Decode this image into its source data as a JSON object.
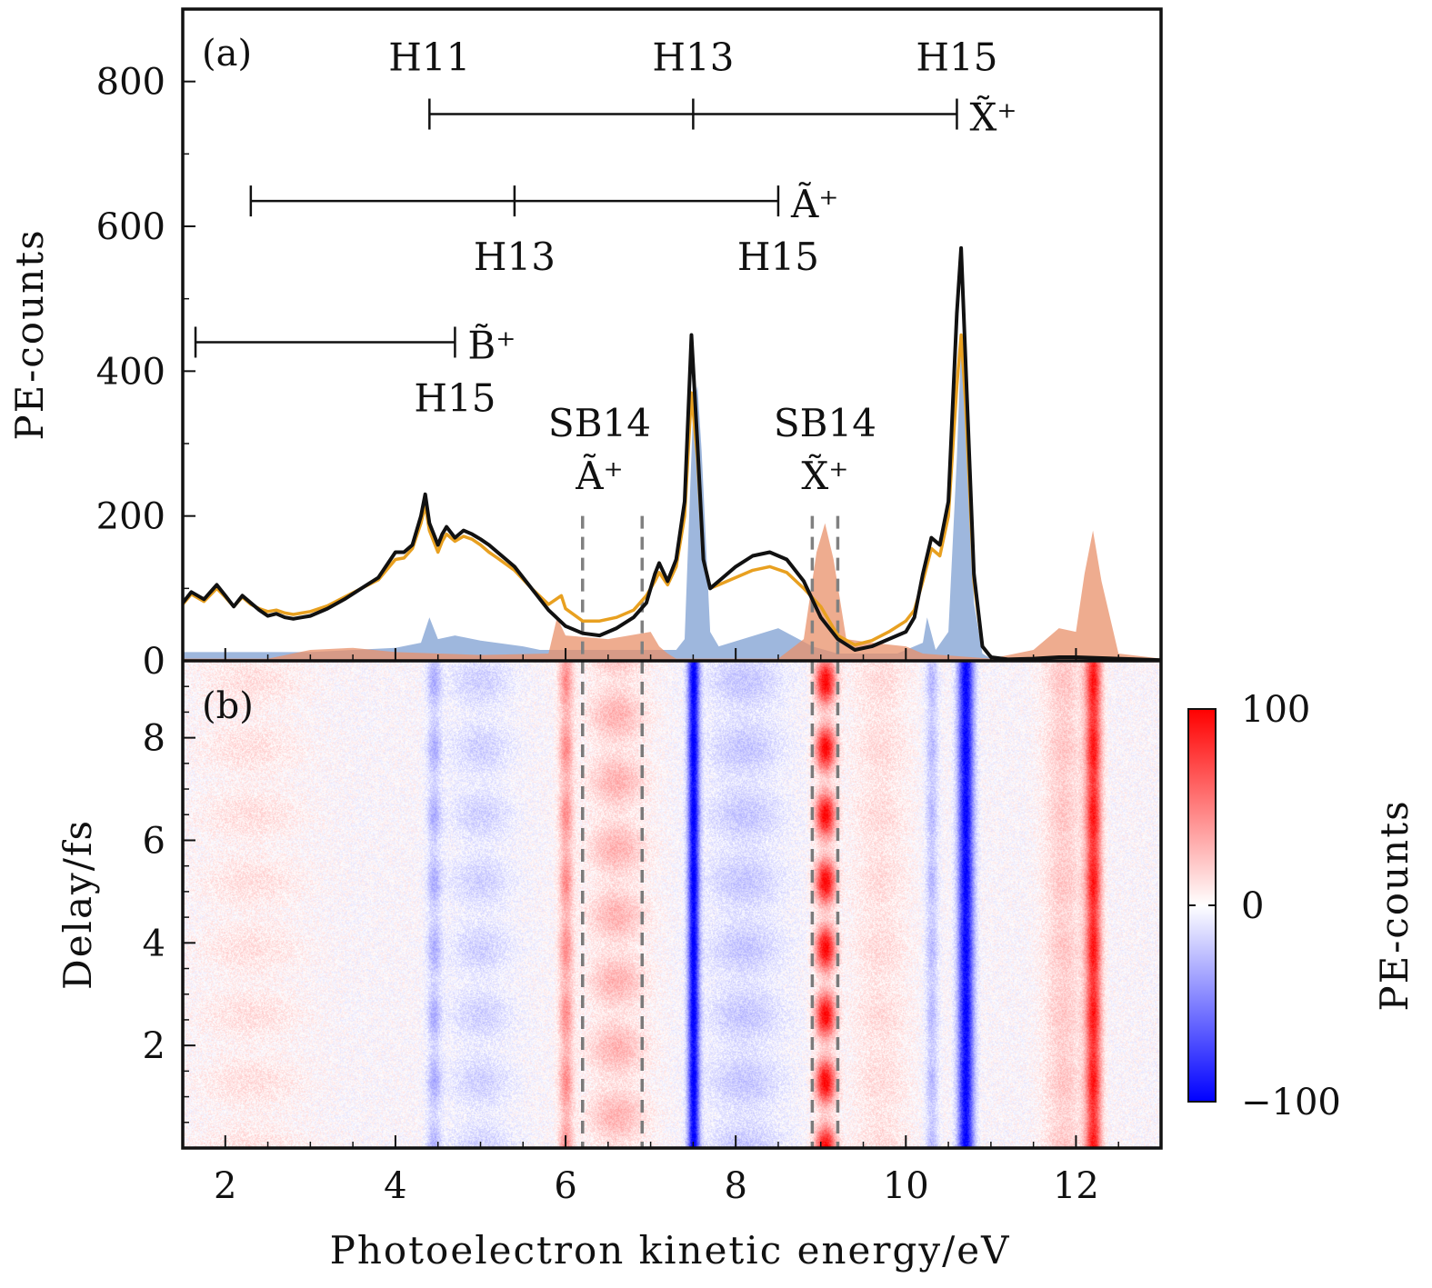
{
  "chart_data": [
    {
      "panel_label": "(a)",
      "type": "line",
      "ylabel": "PE-counts",
      "xlim": [
        1.5,
        13
      ],
      "ylim": [
        0,
        900
      ],
      "xticks": [
        2,
        4,
        6,
        8,
        10,
        12
      ],
      "yticks": [
        0,
        200,
        400,
        600,
        800
      ],
      "grid": false,
      "series": [
        {
          "color": "#111111",
          "x": [
            1.5,
            1.6,
            1.75,
            1.9,
            2.0,
            2.1,
            2.2,
            2.3,
            2.4,
            2.5,
            2.6,
            2.7,
            2.8,
            2.9,
            3.0,
            3.2,
            3.4,
            3.6,
            3.8,
            4.0,
            4.1,
            4.2,
            4.3,
            4.35,
            4.4,
            4.5,
            4.55,
            4.6,
            4.7,
            4.8,
            4.9,
            5.0,
            5.1,
            5.2,
            5.4,
            5.6,
            5.8,
            6.0,
            6.2,
            6.4,
            6.6,
            6.8,
            6.95,
            7.05,
            7.1,
            7.2,
            7.3,
            7.4,
            7.48,
            7.55,
            7.62,
            7.7,
            7.8,
            8.0,
            8.2,
            8.4,
            8.6,
            8.8,
            9.0,
            9.2,
            9.4,
            9.6,
            9.8,
            10.0,
            10.1,
            10.2,
            10.3,
            10.4,
            10.5,
            10.6,
            10.65,
            10.7,
            10.8,
            10.9,
            11.0,
            11.2,
            11.5,
            11.8,
            12.0,
            12.5,
            13.0
          ],
          "y": [
            80,
            95,
            85,
            105,
            90,
            75,
            90,
            80,
            70,
            62,
            65,
            60,
            58,
            60,
            62,
            72,
            85,
            100,
            115,
            150,
            150,
            160,
            200,
            230,
            190,
            160,
            175,
            185,
            170,
            180,
            175,
            168,
            160,
            150,
            130,
            100,
            70,
            48,
            38,
            35,
            45,
            60,
            80,
            120,
            135,
            110,
            140,
            220,
            450,
            300,
            140,
            100,
            110,
            130,
            145,
            150,
            140,
            110,
            60,
            30,
            15,
            20,
            30,
            40,
            60,
            120,
            170,
            160,
            220,
            480,
            570,
            420,
            120,
            20,
            5,
            2,
            3,
            5,
            5,
            3,
            1
          ]
        },
        {
          "color": "#e8a020",
          "x": [
            1.5,
            1.6,
            1.75,
            1.9,
            2.0,
            2.1,
            2.2,
            2.3,
            2.4,
            2.5,
            2.6,
            2.7,
            2.8,
            2.9,
            3.0,
            3.2,
            3.4,
            3.6,
            3.8,
            4.0,
            4.1,
            4.2,
            4.3,
            4.35,
            4.4,
            4.5,
            4.55,
            4.6,
            4.7,
            4.8,
            4.9,
            5.0,
            5.1,
            5.2,
            5.4,
            5.6,
            5.8,
            5.95,
            6.0,
            6.2,
            6.4,
            6.6,
            6.8,
            6.95,
            7.05,
            7.1,
            7.2,
            7.3,
            7.4,
            7.48,
            7.55,
            7.62,
            7.7,
            7.8,
            8.0,
            8.2,
            8.4,
            8.6,
            8.8,
            9.0,
            9.2,
            9.4,
            9.6,
            9.8,
            10.0,
            10.1,
            10.2,
            10.3,
            10.4,
            10.5,
            10.6,
            10.65,
            10.7,
            10.8,
            10.9,
            11.0,
            11.2,
            11.5,
            11.8,
            12.0,
            12.5,
            13.0
          ],
          "y": [
            78,
            92,
            82,
            100,
            88,
            75,
            88,
            78,
            72,
            68,
            70,
            66,
            64,
            66,
            68,
            76,
            88,
            100,
            112,
            140,
            142,
            155,
            190,
            215,
            180,
            150,
            165,
            175,
            165,
            172,
            168,
            160,
            150,
            142,
            125,
            100,
            78,
            90,
            72,
            55,
            55,
            60,
            70,
            90,
            110,
            122,
            105,
            130,
            200,
            370,
            280,
            140,
            100,
            105,
            115,
            125,
            130,
            122,
            100,
            75,
            35,
            22,
            28,
            40,
            55,
            70,
            110,
            155,
            145,
            200,
            380,
            450,
            360,
            110,
            20,
            5,
            2,
            3,
            5,
            5,
            3,
            1
          ]
        }
      ],
      "areas": [
        {
          "color": "#7e9fd2",
          "x": [
            1.5,
            2.0,
            3.0,
            4.0,
            4.3,
            4.4,
            4.5,
            4.7,
            5.0,
            5.5,
            5.7,
            7.3,
            7.4,
            7.5,
            7.55,
            7.6,
            7.7,
            7.8,
            8.5,
            8.9,
            9.2,
            9.9,
            10.2,
            10.25,
            10.35,
            10.5,
            10.6,
            10.65,
            10.72,
            10.8,
            10.9,
            11.0,
            13.0
          ],
          "y": [
            12,
            12,
            12,
            18,
            25,
            60,
            30,
            35,
            28,
            20,
            15,
            15,
            30,
            350,
            380,
            290,
            40,
            20,
            45,
            20,
            10,
            10,
            25,
            60,
            15,
            40,
            280,
            440,
            360,
            80,
            10,
            3,
            3
          ]
        },
        {
          "color": "#e8906a",
          "x": [
            1.5,
            2.5,
            3.0,
            3.5,
            4.0,
            5.0,
            5.8,
            5.9,
            6.0,
            6.5,
            7.0,
            7.1,
            7.2,
            7.3,
            8.5,
            8.8,
            8.95,
            9.05,
            9.15,
            9.3,
            9.6,
            10.0,
            10.2,
            11.0,
            11.5,
            11.7,
            11.8,
            12.0,
            12.1,
            12.2,
            12.3,
            12.5,
            13.0
          ],
          "y": [
            3,
            3,
            15,
            18,
            12,
            8,
            10,
            60,
            35,
            30,
            40,
            20,
            10,
            3,
            3,
            30,
            150,
            190,
            140,
            30,
            25,
            20,
            10,
            3,
            15,
            35,
            45,
            40,
            120,
            180,
            110,
            10,
            3
          ]
        }
      ],
      "ladders": [
        {
          "label": "X̃⁺",
          "x": [
            4.4,
            7.5,
            10.6
          ],
          "y": 755,
          "harmonics": [
            "H11",
            "H13",
            "H15"
          ],
          "harmonic_labels_position": "above"
        },
        {
          "label": "Ã⁺",
          "x": [
            2.3,
            5.4,
            8.5
          ],
          "y": 635,
          "harmonics": [
            "H13",
            "H15"
          ],
          "harmonic_labels_position": "below"
        },
        {
          "label": "B̃⁺",
          "x": [
            1.65,
            4.7
          ],
          "y": 440,
          "harmonics": [
            "H15"
          ],
          "harmonic_labels_position": "below"
        }
      ],
      "annotations": [
        {
          "lines": [
            "SB14",
            "Ã⁺"
          ],
          "color": "#e02020",
          "x": 6.4,
          "dashed_x": [
            6.2,
            6.9
          ]
        },
        {
          "lines": [
            "SB14",
            "X̃⁺"
          ],
          "color": "#e02020",
          "x": 9.05,
          "dashed_x": [
            8.9,
            9.2
          ]
        }
      ]
    },
    {
      "panel_label": "(b)",
      "type": "heatmap",
      "xlabel": "Photoelectron kinetic energy/eV",
      "ylabel": "Delay/fs",
      "xlim": [
        1.5,
        13
      ],
      "ylim": [
        0,
        9.5
      ],
      "xticks": [
        2,
        4,
        6,
        8,
        10,
        12
      ],
      "yticks": [
        0,
        2,
        4,
        6,
        8
      ],
      "colorbar": {
        "label": "PE-counts",
        "min": -100,
        "max": 100,
        "ticks": [
          100,
          0,
          -100
        ],
        "tick_labels": [
          "100",
          "0",
          "−100"
        ],
        "colors": [
          "#0000ff",
          "#ffffff",
          "#ff0000"
        ]
      },
      "oscillation_period_fs": 1.3,
      "bands": [
        {
          "x": 2.3,
          "width": 1.5,
          "amp": 12,
          "osc": 0.6,
          "phase": 0
        },
        {
          "x": 4.45,
          "width": 0.2,
          "amp": -30,
          "osc": 0.5,
          "phase": 0
        },
        {
          "x": 5.0,
          "width": 0.9,
          "amp": -18,
          "osc": 0.6,
          "phase": 0
        },
        {
          "x": 6.0,
          "width": 0.2,
          "amp": 45,
          "osc": 0.4,
          "phase": 0
        },
        {
          "x": 6.6,
          "width": 0.8,
          "amp": 30,
          "osc": 0.6,
          "phase": 3.14
        },
        {
          "x": 7.5,
          "width": 0.16,
          "amp": -100,
          "osc": 0.05,
          "phase": 0
        },
        {
          "x": 8.1,
          "width": 1.1,
          "amp": -22,
          "osc": 0.5,
          "phase": 0
        },
        {
          "x": 9.05,
          "width": 0.28,
          "amp": 100,
          "osc": 0.8,
          "phase": 0
        },
        {
          "x": 9.7,
          "width": 0.8,
          "amp": 14,
          "osc": 0.3,
          "phase": 0
        },
        {
          "x": 10.3,
          "width": 0.18,
          "amp": -28,
          "osc": 0.3,
          "phase": 0
        },
        {
          "x": 10.7,
          "width": 0.22,
          "amp": -100,
          "osc": 0.05,
          "phase": 0
        },
        {
          "x": 11.85,
          "width": 0.55,
          "amp": 22,
          "osc": 0.2,
          "phase": 0
        },
        {
          "x": 12.2,
          "width": 0.22,
          "amp": 90,
          "osc": 0.15,
          "phase": 0
        }
      ]
    }
  ]
}
